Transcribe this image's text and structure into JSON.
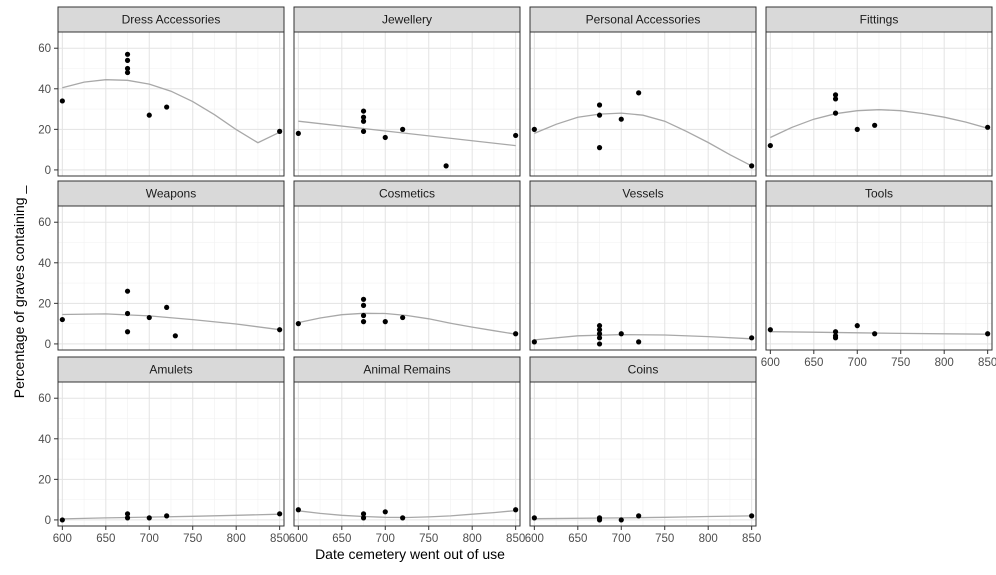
{
  "chart_data": {
    "type": "scatter",
    "layout": "facet_wrap",
    "xlabel": "Date cemetery went out of use",
    "ylabel": "Percentage of graves containing _",
    "xlim": [
      595,
      855
    ],
    "ylim": [
      -3,
      68
    ],
    "x_ticks": [
      600,
      650,
      700,
      750,
      800,
      850
    ],
    "y_ticks": [
      0,
      20,
      40,
      60
    ],
    "point_color": "#000000",
    "trend_color": "#a8a8a8",
    "strip_color": "#d9d9d9",
    "panels": [
      {
        "name": "Dress Accessories",
        "points": [
          [
            600,
            34
          ],
          [
            675,
            57
          ],
          [
            675,
            54
          ],
          [
            675,
            50
          ],
          [
            675,
            48
          ],
          [
            700,
            27
          ],
          [
            720,
            31
          ],
          [
            850,
            19
          ]
        ],
        "trend": [
          [
            600,
            40.5
          ],
          [
            625,
            43.3
          ],
          [
            650,
            44.5
          ],
          [
            675,
            44.2
          ],
          [
            700,
            42.3
          ],
          [
            725,
            38.8
          ],
          [
            750,
            33.7
          ],
          [
            775,
            27.2
          ],
          [
            800,
            19.9
          ],
          [
            825,
            13.4
          ],
          [
            850,
            18.6
          ]
        ]
      },
      {
        "name": "Jewellery",
        "points": [
          [
            600,
            18
          ],
          [
            675,
            29
          ],
          [
            675,
            26
          ],
          [
            675,
            24
          ],
          [
            675,
            19
          ],
          [
            700,
            16
          ],
          [
            720,
            20
          ],
          [
            770,
            2
          ],
          [
            850,
            17
          ]
        ],
        "trend": [
          [
            600,
            24
          ],
          [
            850,
            12
          ]
        ]
      },
      {
        "name": "Personal Accessories",
        "points": [
          [
            600,
            20
          ],
          [
            675,
            32
          ],
          [
            675,
            27
          ],
          [
            675,
            11
          ],
          [
            700,
            25
          ],
          [
            720,
            38
          ],
          [
            850,
            2
          ]
        ],
        "trend": [
          [
            600,
            18
          ],
          [
            625,
            22.5
          ],
          [
            650,
            26
          ],
          [
            675,
            27.5
          ],
          [
            700,
            28
          ],
          [
            725,
            27
          ],
          [
            750,
            24
          ],
          [
            775,
            19
          ],
          [
            800,
            13.5
          ],
          [
            825,
            7.5
          ],
          [
            850,
            2
          ]
        ]
      },
      {
        "name": "Fittings",
        "points": [
          [
            600,
            12
          ],
          [
            675,
            37
          ],
          [
            675,
            35
          ],
          [
            675,
            28
          ],
          [
            700,
            20
          ],
          [
            720,
            22
          ],
          [
            850,
            21
          ]
        ],
        "trend": [
          [
            600,
            16
          ],
          [
            625,
            21
          ],
          [
            650,
            25
          ],
          [
            675,
            27.7
          ],
          [
            700,
            29.2
          ],
          [
            725,
            29.7
          ],
          [
            750,
            29.2
          ],
          [
            775,
            27.8
          ],
          [
            800,
            26
          ],
          [
            825,
            23.6
          ],
          [
            850,
            20.5
          ]
        ]
      },
      {
        "name": "Weapons",
        "points": [
          [
            600,
            12
          ],
          [
            675,
            26
          ],
          [
            675,
            15
          ],
          [
            675,
            6
          ],
          [
            700,
            13
          ],
          [
            720,
            18
          ],
          [
            730,
            4
          ],
          [
            850,
            7
          ]
        ],
        "trend": [
          [
            600,
            14.5
          ],
          [
            650,
            14.8
          ],
          [
            700,
            13.8
          ],
          [
            750,
            12
          ],
          [
            800,
            9.8
          ],
          [
            850,
            7
          ]
        ]
      },
      {
        "name": "Cosmetics",
        "points": [
          [
            600,
            10
          ],
          [
            675,
            22
          ],
          [
            675,
            19
          ],
          [
            675,
            14
          ],
          [
            675,
            11
          ],
          [
            700,
            11
          ],
          [
            720,
            13
          ],
          [
            850,
            5
          ]
        ],
        "trend": [
          [
            600,
            10.5
          ],
          [
            625,
            12.8
          ],
          [
            650,
            14.4
          ],
          [
            675,
            15.1
          ],
          [
            700,
            15
          ],
          [
            725,
            14
          ],
          [
            750,
            12.4
          ],
          [
            775,
            10.2
          ],
          [
            800,
            8.3
          ],
          [
            825,
            6.5
          ],
          [
            850,
            4.8
          ]
        ]
      },
      {
        "name": "Vessels",
        "points": [
          [
            600,
            1
          ],
          [
            675,
            9
          ],
          [
            675,
            7
          ],
          [
            675,
            5
          ],
          [
            675,
            3
          ],
          [
            675,
            0
          ],
          [
            700,
            5
          ],
          [
            720,
            1
          ],
          [
            850,
            3
          ]
        ],
        "trend": [
          [
            600,
            2
          ],
          [
            650,
            4
          ],
          [
            700,
            4.6
          ],
          [
            750,
            4.4
          ],
          [
            800,
            3.6
          ],
          [
            850,
            2.5
          ]
        ]
      },
      {
        "name": "Tools",
        "points": [
          [
            600,
            7
          ],
          [
            675,
            6
          ],
          [
            675,
            4
          ],
          [
            675,
            3
          ],
          [
            700,
            9
          ],
          [
            720,
            5
          ],
          [
            850,
            5
          ]
        ],
        "trend": [
          [
            600,
            6
          ],
          [
            650,
            5.8
          ],
          [
            700,
            5.5
          ],
          [
            750,
            5.2
          ],
          [
            800,
            5
          ],
          [
            850,
            4.8
          ]
        ]
      },
      {
        "name": "Amulets",
        "points": [
          [
            600,
            0
          ],
          [
            675,
            3
          ],
          [
            675,
            1
          ],
          [
            700,
            1
          ],
          [
            720,
            2
          ],
          [
            850,
            3
          ]
        ],
        "trend": [
          [
            600,
            0.5
          ],
          [
            650,
            1
          ],
          [
            700,
            1.4
          ],
          [
            750,
            1.8
          ],
          [
            800,
            2.3
          ],
          [
            850,
            2.8
          ]
        ]
      },
      {
        "name": "Animal Remains",
        "points": [
          [
            600,
            5
          ],
          [
            675,
            3
          ],
          [
            675,
            1
          ],
          [
            700,
            4
          ],
          [
            720,
            1
          ],
          [
            850,
            5
          ]
        ],
        "trend": [
          [
            600,
            4.5
          ],
          [
            625,
            3.2
          ],
          [
            650,
            2.3
          ],
          [
            675,
            1.7
          ],
          [
            700,
            1.3
          ],
          [
            725,
            1.2
          ],
          [
            750,
            1.5
          ],
          [
            775,
            2
          ],
          [
            800,
            2.8
          ],
          [
            825,
            3.6
          ],
          [
            850,
            4.6
          ]
        ]
      },
      {
        "name": "Coins",
        "points": [
          [
            600,
            1
          ],
          [
            675,
            1
          ],
          [
            675,
            0
          ],
          [
            700,
            0
          ],
          [
            720,
            2
          ],
          [
            850,
            2
          ]
        ],
        "trend": [
          [
            600,
            0.6
          ],
          [
            700,
            1
          ],
          [
            750,
            1.3
          ],
          [
            800,
            1.7
          ],
          [
            850,
            2
          ]
        ]
      }
    ]
  }
}
